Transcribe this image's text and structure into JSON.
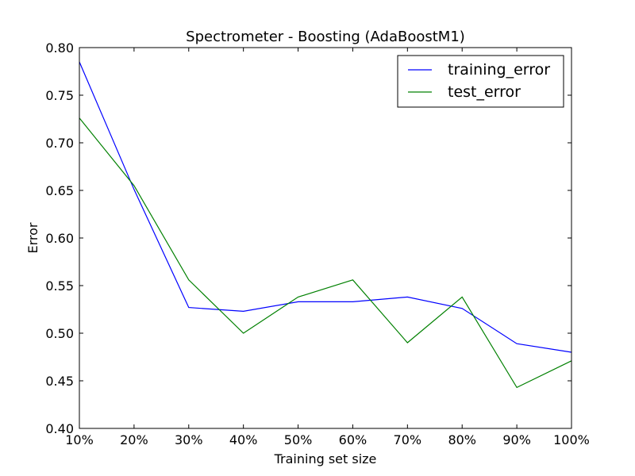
{
  "chart_data": {
    "type": "line",
    "title": "Spectrometer - Boosting (AdaBoostM1)",
    "xlabel": "Training set size",
    "ylabel": "Error",
    "categories": [
      "10%",
      "20%",
      "30%",
      "40%",
      "50%",
      "60%",
      "70%",
      "80%",
      "90%",
      "100%"
    ],
    "ylim": [
      0.4,
      0.8
    ],
    "yticks": [
      "0.40",
      "0.45",
      "0.50",
      "0.55",
      "0.60",
      "0.65",
      "0.70",
      "0.75",
      "0.80"
    ],
    "grid": false,
    "legend_position": "top-right",
    "series": [
      {
        "name": "training_error",
        "color": "#0000ff",
        "values": [
          0.785,
          0.651,
          0.527,
          0.523,
          0.533,
          0.533,
          0.538,
          0.526,
          0.489,
          0.48
        ]
      },
      {
        "name": "test_error",
        "color": "#008000",
        "values": [
          0.726,
          0.655,
          0.556,
          0.5,
          0.538,
          0.556,
          0.49,
          0.538,
          0.443,
          0.471
        ]
      }
    ]
  }
}
